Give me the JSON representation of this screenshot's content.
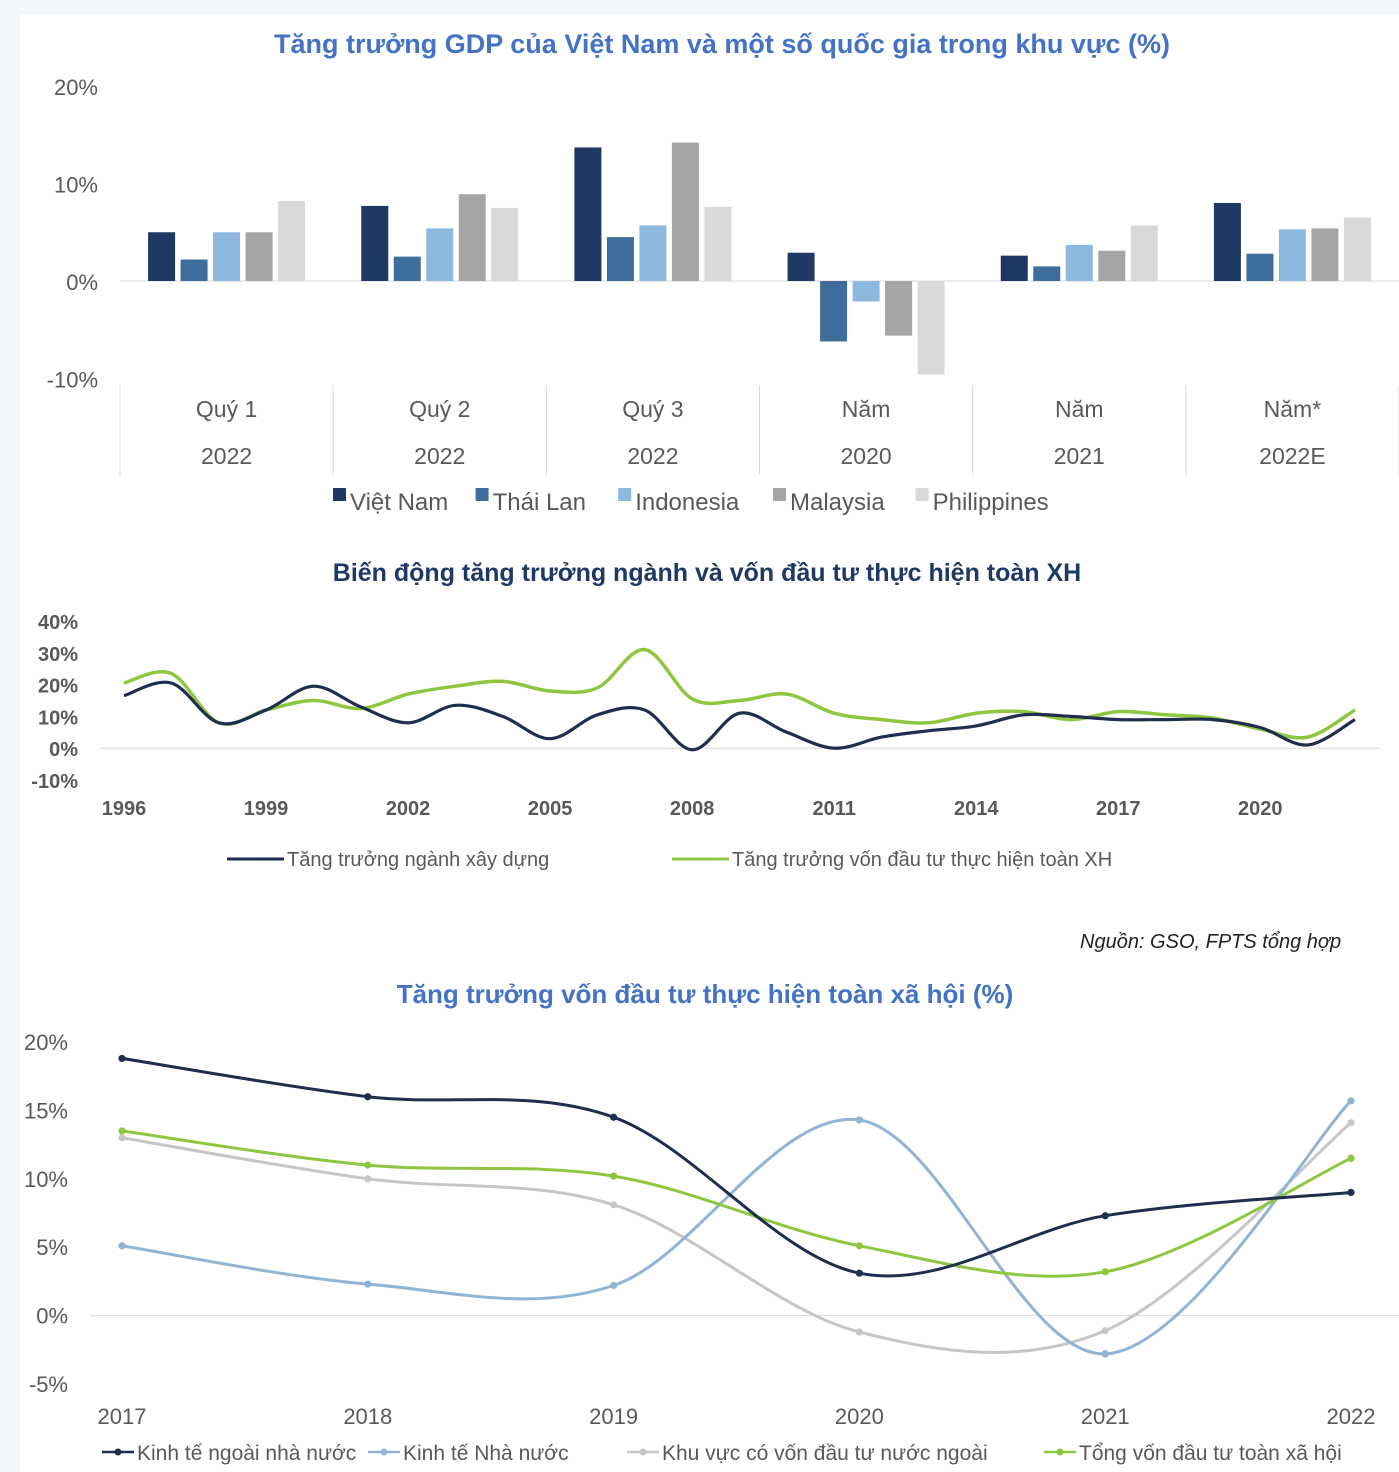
{
  "chart_data": [
    {
      "type": "bar",
      "title": "Tăng trưởng GDP của Việt Nam và một số quốc gia trong khu vực (%)",
      "categories": [
        [
          "Quý 1",
          "2022"
        ],
        [
          "Quý 2",
          "2022"
        ],
        [
          "Quý 3",
          "2022"
        ],
        [
          "Năm",
          "2020"
        ],
        [
          "Năm",
          "2021"
        ],
        [
          "Năm*",
          "2022E"
        ]
      ],
      "series": [
        {
          "name": "Việt Nam",
          "color": "#1f3864",
          "values": [
            5.0,
            7.7,
            13.7,
            2.9,
            2.6,
            8.0
          ]
        },
        {
          "name": "Thái Lan",
          "color": "#3e6d9c",
          "values": [
            2.2,
            2.5,
            4.5,
            -6.2,
            1.5,
            2.8
          ]
        },
        {
          "name": "Indonesia",
          "color": "#8cb9dd",
          "values": [
            5.0,
            5.4,
            5.7,
            -2.1,
            3.7,
            5.3
          ]
        },
        {
          "name": "Malaysia",
          "color": "#a5a5a5",
          "values": [
            5.0,
            8.9,
            14.2,
            -5.6,
            3.1,
            5.4
          ]
        },
        {
          "name": "Philippines",
          "color": "#d9d9d9",
          "values": [
            8.2,
            7.5,
            7.6,
            -9.6,
            5.7,
            6.5
          ]
        }
      ],
      "yticks": [
        "20%",
        "10%",
        "0%",
        "-10%"
      ],
      "ylim": [
        -10,
        20
      ],
      "legend": "bottom"
    },
    {
      "type": "line",
      "title": "Biến động tăng trưởng ngành và vốn đầu tư thực hiện toàn XH",
      "x": [
        1996,
        1997,
        1998,
        1999,
        2000,
        2001,
        2002,
        2003,
        2004,
        2005,
        2006,
        2007,
        2008,
        2009,
        2010,
        2011,
        2012,
        2013,
        2014,
        2015,
        2016,
        2017,
        2018,
        2019,
        2020,
        2021,
        2022
      ],
      "xticks": [
        "1996",
        "1999",
        "2002",
        "2005",
        "2008",
        "2011",
        "2014",
        "2017",
        "2020"
      ],
      "yticks": [
        "40%",
        "30%",
        "20%",
        "10%",
        "0%",
        "-10%"
      ],
      "ylim": [
        -10,
        40
      ],
      "series": [
        {
          "name": "Tăng trưởng ngành xây dựng",
          "color": "#1f2d4e",
          "values": [
            16.5,
            20.5,
            8.0,
            12.0,
            19.5,
            13.0,
            8.0,
            13.5,
            10.0,
            3.0,
            10.5,
            12.0,
            -0.5,
            11.0,
            5.0,
            0.0,
            3.5,
            5.5,
            7.0,
            10.5,
            10.0,
            9.0,
            9.0,
            9.0,
            6.5,
            1.0,
            9.0
          ]
        },
        {
          "name": "Tăng trưởng vốn đầu tư thực hiện toàn XH",
          "color": "#8dc63f",
          "values": [
            20.5,
            23.5,
            8.0,
            12.0,
            15.0,
            12.5,
            17.0,
            19.5,
            21.0,
            18.0,
            19.0,
            31.0,
            15.5,
            15.0,
            17.0,
            11.0,
            9.0,
            8.0,
            11.0,
            11.5,
            9.0,
            11.5,
            10.5,
            9.5,
            6.0,
            3.5,
            12.0
          ]
        }
      ],
      "legend": "bottom"
    },
    {
      "type": "line",
      "title": "Tăng trưởng vốn đầu tư thực hiện toàn xã hội (%)",
      "x": [
        2017,
        2018,
        2019,
        2020,
        2021,
        2022
      ],
      "xticks": [
        "2017",
        "2018",
        "2019",
        "2020",
        "2021",
        "2022"
      ],
      "yticks": [
        "20%",
        "15%",
        "10%",
        "5%",
        "0%",
        "-5%"
      ],
      "ylim": [
        -5,
        20
      ],
      "series": [
        {
          "name": "Kinh tế ngoài nhà nước",
          "color": "#1f2d4e",
          "values": [
            18.8,
            16.0,
            14.5,
            3.1,
            7.3,
            9.0
          ]
        },
        {
          "name": "Kinh tế Nhà nước",
          "color": "#8fb4d4",
          "values": [
            5.1,
            2.3,
            2.2,
            14.3,
            -2.8,
            15.7
          ]
        },
        {
          "name": "Khu vực có vốn đầu tư nước ngoài",
          "color": "#c6c6c6",
          "values": [
            13.0,
            10.0,
            8.1,
            -1.2,
            -1.1,
            14.1
          ]
        },
        {
          "name": "Tổng vốn đầu tư toàn xã hội",
          "color": "#8dc63f",
          "values": [
            13.5,
            11.0,
            10.2,
            5.1,
            3.2,
            11.5
          ]
        }
      ],
      "legend": "bottom"
    }
  ],
  "source_note": "Nguồn: GSO, FPTS tổng hợp"
}
